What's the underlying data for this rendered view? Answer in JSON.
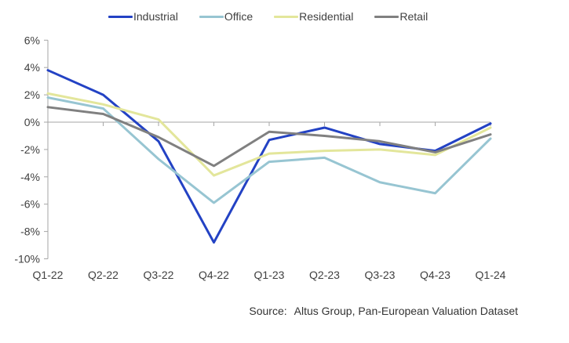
{
  "chart_data": {
    "type": "line",
    "title": "",
    "categories": [
      "Q1-22",
      "Q2-22",
      "Q3-22",
      "Q4-22",
      "Q1-23",
      "Q2-23",
      "Q3-23",
      "Q4-23",
      "Q1-24"
    ],
    "series": [
      {
        "name": "Industrial",
        "color": "#2342C4",
        "values": [
          3.8,
          2.0,
          -1.4,
          -8.8,
          -1.3,
          -0.4,
          -1.6,
          -2.1,
          -0.1
        ]
      },
      {
        "name": "Office",
        "color": "#97C5D2",
        "values": [
          1.8,
          1.0,
          -2.7,
          -5.9,
          -2.9,
          -2.6,
          -4.4,
          -5.2,
          -1.2
        ]
      },
      {
        "name": "Residential",
        "color": "#E3E69B",
        "values": [
          2.1,
          1.3,
          0.2,
          -3.9,
          -2.3,
          -2.1,
          -2.0,
          -2.4,
          -0.4
        ]
      },
      {
        "name": "Retail",
        "color": "#808080",
        "values": [
          1.1,
          0.6,
          -1.1,
          -3.2,
          -0.7,
          -1.0,
          -1.4,
          -2.2,
          -0.9
        ]
      }
    ],
    "ylim": [
      -10,
      6
    ],
    "y_ticks": {
      "values": [
        6,
        4,
        2,
        0,
        -2,
        -4,
        -6,
        -8,
        -10
      ],
      "labels": [
        "6%",
        "4%",
        "2%",
        "0%",
        "-2%",
        "-4%",
        "-6%",
        "-8%",
        "-10%"
      ]
    },
    "grid": "zero-line-only",
    "legend_position": "top",
    "axis_color": "#A6A6A6",
    "text_color": "#404040",
    "source_prefix": "Source:",
    "source_text": "Altus Group, Pan-European Valuation Dataset"
  }
}
